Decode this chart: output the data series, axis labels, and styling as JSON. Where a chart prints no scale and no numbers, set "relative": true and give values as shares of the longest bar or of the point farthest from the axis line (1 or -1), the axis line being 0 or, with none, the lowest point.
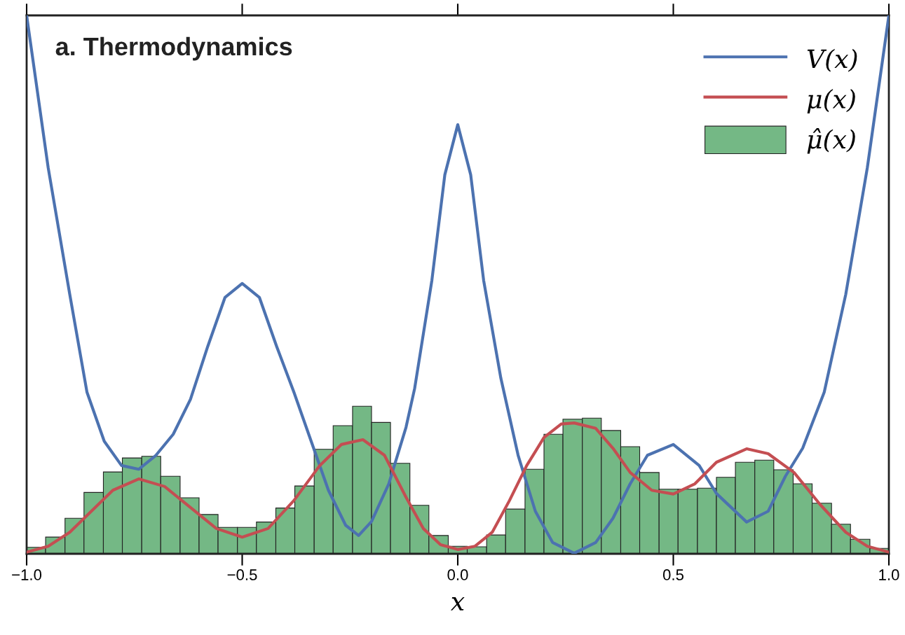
{
  "chart_data": {
    "type": "histogram",
    "title": "a. Thermodynamics",
    "xlabel": "x",
    "relative": true,
    "xlim": [
      -1.0,
      1.0
    ],
    "xticks": [
      {
        "value": -1.0,
        "label": "−1.0"
      },
      {
        "value": -0.5,
        "label": "−0.5"
      },
      {
        "value": 0.0,
        "label": "0.0"
      },
      {
        "value": 0.5,
        "label": "0.5"
      },
      {
        "value": 1.0,
        "label": "1.0"
      }
    ],
    "legend": "top right",
    "grid": false,
    "series": [
      {
        "name": "V(x)",
        "type": "line",
        "color": "#4c72b0",
        "x": [
          -1.0,
          -0.95,
          -0.9,
          -0.86,
          -0.82,
          -0.78,
          -0.74,
          -0.7,
          -0.66,
          -0.62,
          -0.58,
          -0.54,
          -0.5,
          -0.46,
          -0.42,
          -0.38,
          -0.34,
          -0.3,
          -0.26,
          -0.23,
          -0.2,
          -0.16,
          -0.12,
          -0.1,
          -0.06,
          -0.03,
          0.0,
          0.03,
          0.06,
          0.1,
          0.14,
          0.18,
          0.22,
          0.27,
          0.32,
          0.36,
          0.4,
          0.44,
          0.5,
          0.56,
          0.6,
          0.67,
          0.72,
          0.76,
          0.8,
          0.85,
          0.9,
          0.95,
          1.0
        ],
        "values": [
          1.0,
          0.717,
          0.482,
          0.3,
          0.209,
          0.164,
          0.157,
          0.183,
          0.222,
          0.287,
          0.385,
          0.476,
          0.502,
          0.476,
          0.385,
          0.3,
          0.209,
          0.118,
          0.053,
          0.034,
          0.06,
          0.13,
          0.235,
          0.307,
          0.508,
          0.704,
          0.797,
          0.704,
          0.508,
          0.326,
          0.183,
          0.079,
          0.021,
          0.001,
          0.021,
          0.066,
          0.13,
          0.183,
          0.203,
          0.164,
          0.112,
          0.059,
          0.079,
          0.144,
          0.196,
          0.3,
          0.482,
          0.717,
          1.0
        ]
      },
      {
        "name": "μ(x)",
        "type": "line",
        "color": "#c44e52",
        "x": [
          -1.0,
          -0.95,
          -0.9,
          -0.85,
          -0.8,
          -0.74,
          -0.68,
          -0.62,
          -0.56,
          -0.5,
          -0.44,
          -0.38,
          -0.32,
          -0.27,
          -0.22,
          -0.17,
          -0.12,
          -0.08,
          -0.04,
          0.0,
          0.04,
          0.08,
          0.12,
          0.16,
          0.2,
          0.24,
          0.27,
          0.32,
          0.36,
          0.4,
          0.45,
          0.5,
          0.55,
          0.6,
          0.67,
          0.72,
          0.78,
          0.84,
          0.9,
          0.95,
          1.0
        ],
        "values": [
          0.003,
          0.014,
          0.04,
          0.079,
          0.118,
          0.139,
          0.125,
          0.086,
          0.047,
          0.031,
          0.047,
          0.099,
          0.164,
          0.203,
          0.212,
          0.183,
          0.105,
          0.047,
          0.017,
          0.008,
          0.014,
          0.04,
          0.099,
          0.164,
          0.216,
          0.241,
          0.243,
          0.233,
          0.196,
          0.151,
          0.118,
          0.111,
          0.13,
          0.17,
          0.195,
          0.186,
          0.151,
          0.092,
          0.04,
          0.014,
          0.003
        ]
      },
      {
        "name": "μ̂(x)",
        "color": "#74b885",
        "bins": [
          -1.0,
          -0.956,
          -0.911,
          -0.867,
          -0.822,
          -0.778,
          -0.733,
          -0.689,
          -0.644,
          -0.6,
          -0.556,
          -0.511,
          -0.467,
          -0.422,
          -0.378,
          -0.333,
          -0.289,
          -0.244,
          -0.2,
          -0.156,
          -0.111,
          -0.067,
          -0.022,
          0.022,
          0.067,
          0.111,
          0.156,
          0.2,
          0.244,
          0.289,
          0.333,
          0.378,
          0.422,
          0.467,
          0.511,
          0.556,
          0.6,
          0.644,
          0.689,
          0.733,
          0.778,
          0.822,
          0.867,
          0.911,
          0.956,
          1.0
        ],
        "values": [
          0.012,
          0.031,
          0.066,
          0.114,
          0.152,
          0.178,
          0.181,
          0.144,
          0.104,
          0.073,
          0.049,
          0.049,
          0.059,
          0.085,
          0.126,
          0.194,
          0.238,
          0.274,
          0.244,
          0.168,
          0.09,
          0.034,
          0.014,
          0.013,
          0.035,
          0.083,
          0.157,
          0.222,
          0.25,
          0.252,
          0.229,
          0.199,
          0.151,
          0.12,
          0.12,
          0.122,
          0.142,
          0.17,
          0.174,
          0.156,
          0.13,
          0.094,
          0.055,
          0.027,
          0.01
        ]
      }
    ]
  }
}
